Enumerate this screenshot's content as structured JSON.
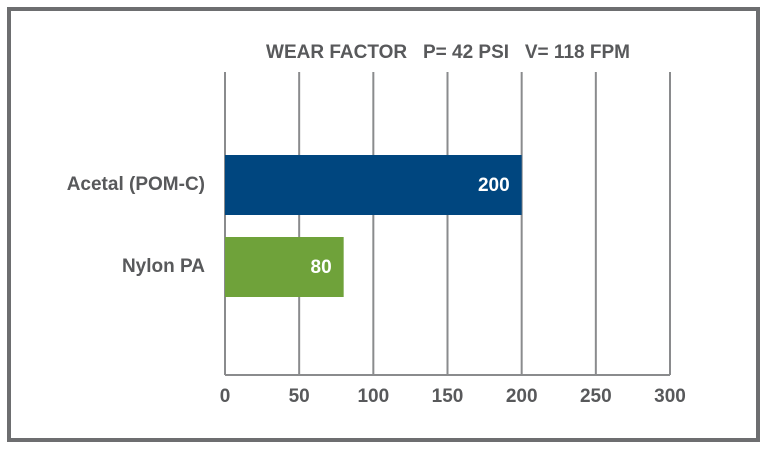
{
  "chart_data": {
    "type": "bar",
    "orientation": "horizontal",
    "title": "WEAR FACTOR   P= 42 PSI   V= 118 FPM",
    "categories": [
      "Acetal (POM-C)",
      "Nylon PA"
    ],
    "values": [
      200,
      80
    ],
    "colors": [
      "#00467f",
      "#6fa23a"
    ],
    "xlim": [
      0,
      300
    ],
    "xticks": [
      0,
      50,
      100,
      150,
      200,
      250,
      300
    ],
    "grid": true
  }
}
